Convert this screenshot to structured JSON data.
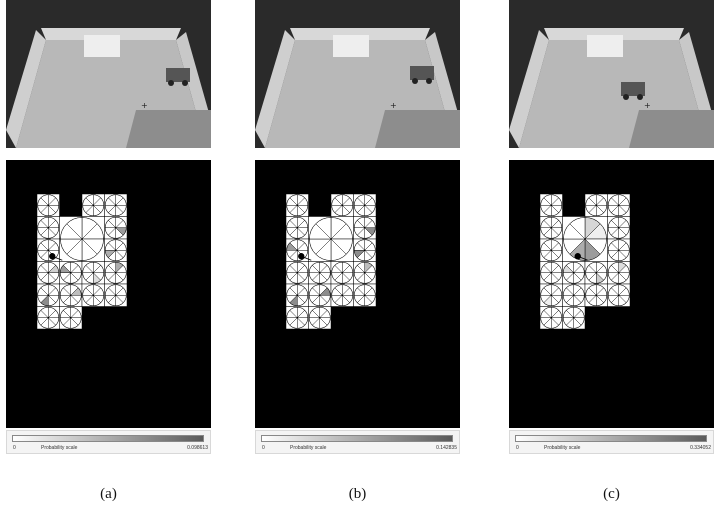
{
  "scale_colors": {
    "low": "#ffffff",
    "high": "#5a5a5a",
    "target": "#ffff00"
  },
  "panels": [
    {
      "caption": "(a)",
      "scale": {
        "min": "0",
        "label": "Probability scale",
        "max": "0.098613"
      },
      "robot_photo": "right",
      "highlight": {
        "row": 5,
        "col": 3
      },
      "shaded": [
        [
          1,
          3,
          0.6
        ],
        [
          2,
          3,
          0.5
        ],
        [
          3,
          3,
          0.5
        ],
        [
          3,
          0,
          0.3
        ],
        [
          3,
          1,
          0.6
        ],
        [
          4,
          0,
          0.7
        ],
        [
          4,
          1,
          0.4
        ],
        [
          5,
          2,
          0.5
        ],
        [
          3,
          2,
          0.2
        ]
      ],
      "big_wedges": [],
      "dot": {
        "row": 2,
        "col": 0
      }
    },
    {
      "caption": "(b)",
      "scale": {
        "min": "0",
        "label": "Probability scale",
        "max": "0.142835"
      },
      "robot_photo": "right-mid",
      "highlight": {
        "row": 5,
        "col": 3
      },
      "shaded": [
        [
          1,
          3,
          0.7
        ],
        [
          2,
          3,
          0.7
        ],
        [
          3,
          3,
          0.4
        ],
        [
          4,
          0,
          0.7
        ],
        [
          4,
          1,
          0.7
        ],
        [
          5,
          2,
          0.5
        ],
        [
          2,
          0,
          0.6
        ]
      ],
      "big_wedges": [],
      "dot": {
        "row": 2,
        "col": 0
      }
    },
    {
      "caption": "(c)",
      "scale": {
        "min": "0",
        "label": "Probability scale",
        "max": "0.334052"
      },
      "robot_photo": "center",
      "highlight": {
        "row": 5,
        "col": 3
      },
      "shaded": [
        [
          3,
          1,
          0.2
        ],
        [
          3,
          2,
          0.3
        ],
        [
          3,
          3,
          0.2
        ],
        [
          4,
          0,
          0.1
        ]
      ],
      "big_wedges": [
        [
          0,
          0.25
        ],
        [
          1,
          0.1
        ],
        [
          3,
          0.6
        ],
        [
          4,
          0.5
        ]
      ],
      "dot": {
        "row": 2,
        "col": 1
      }
    }
  ]
}
